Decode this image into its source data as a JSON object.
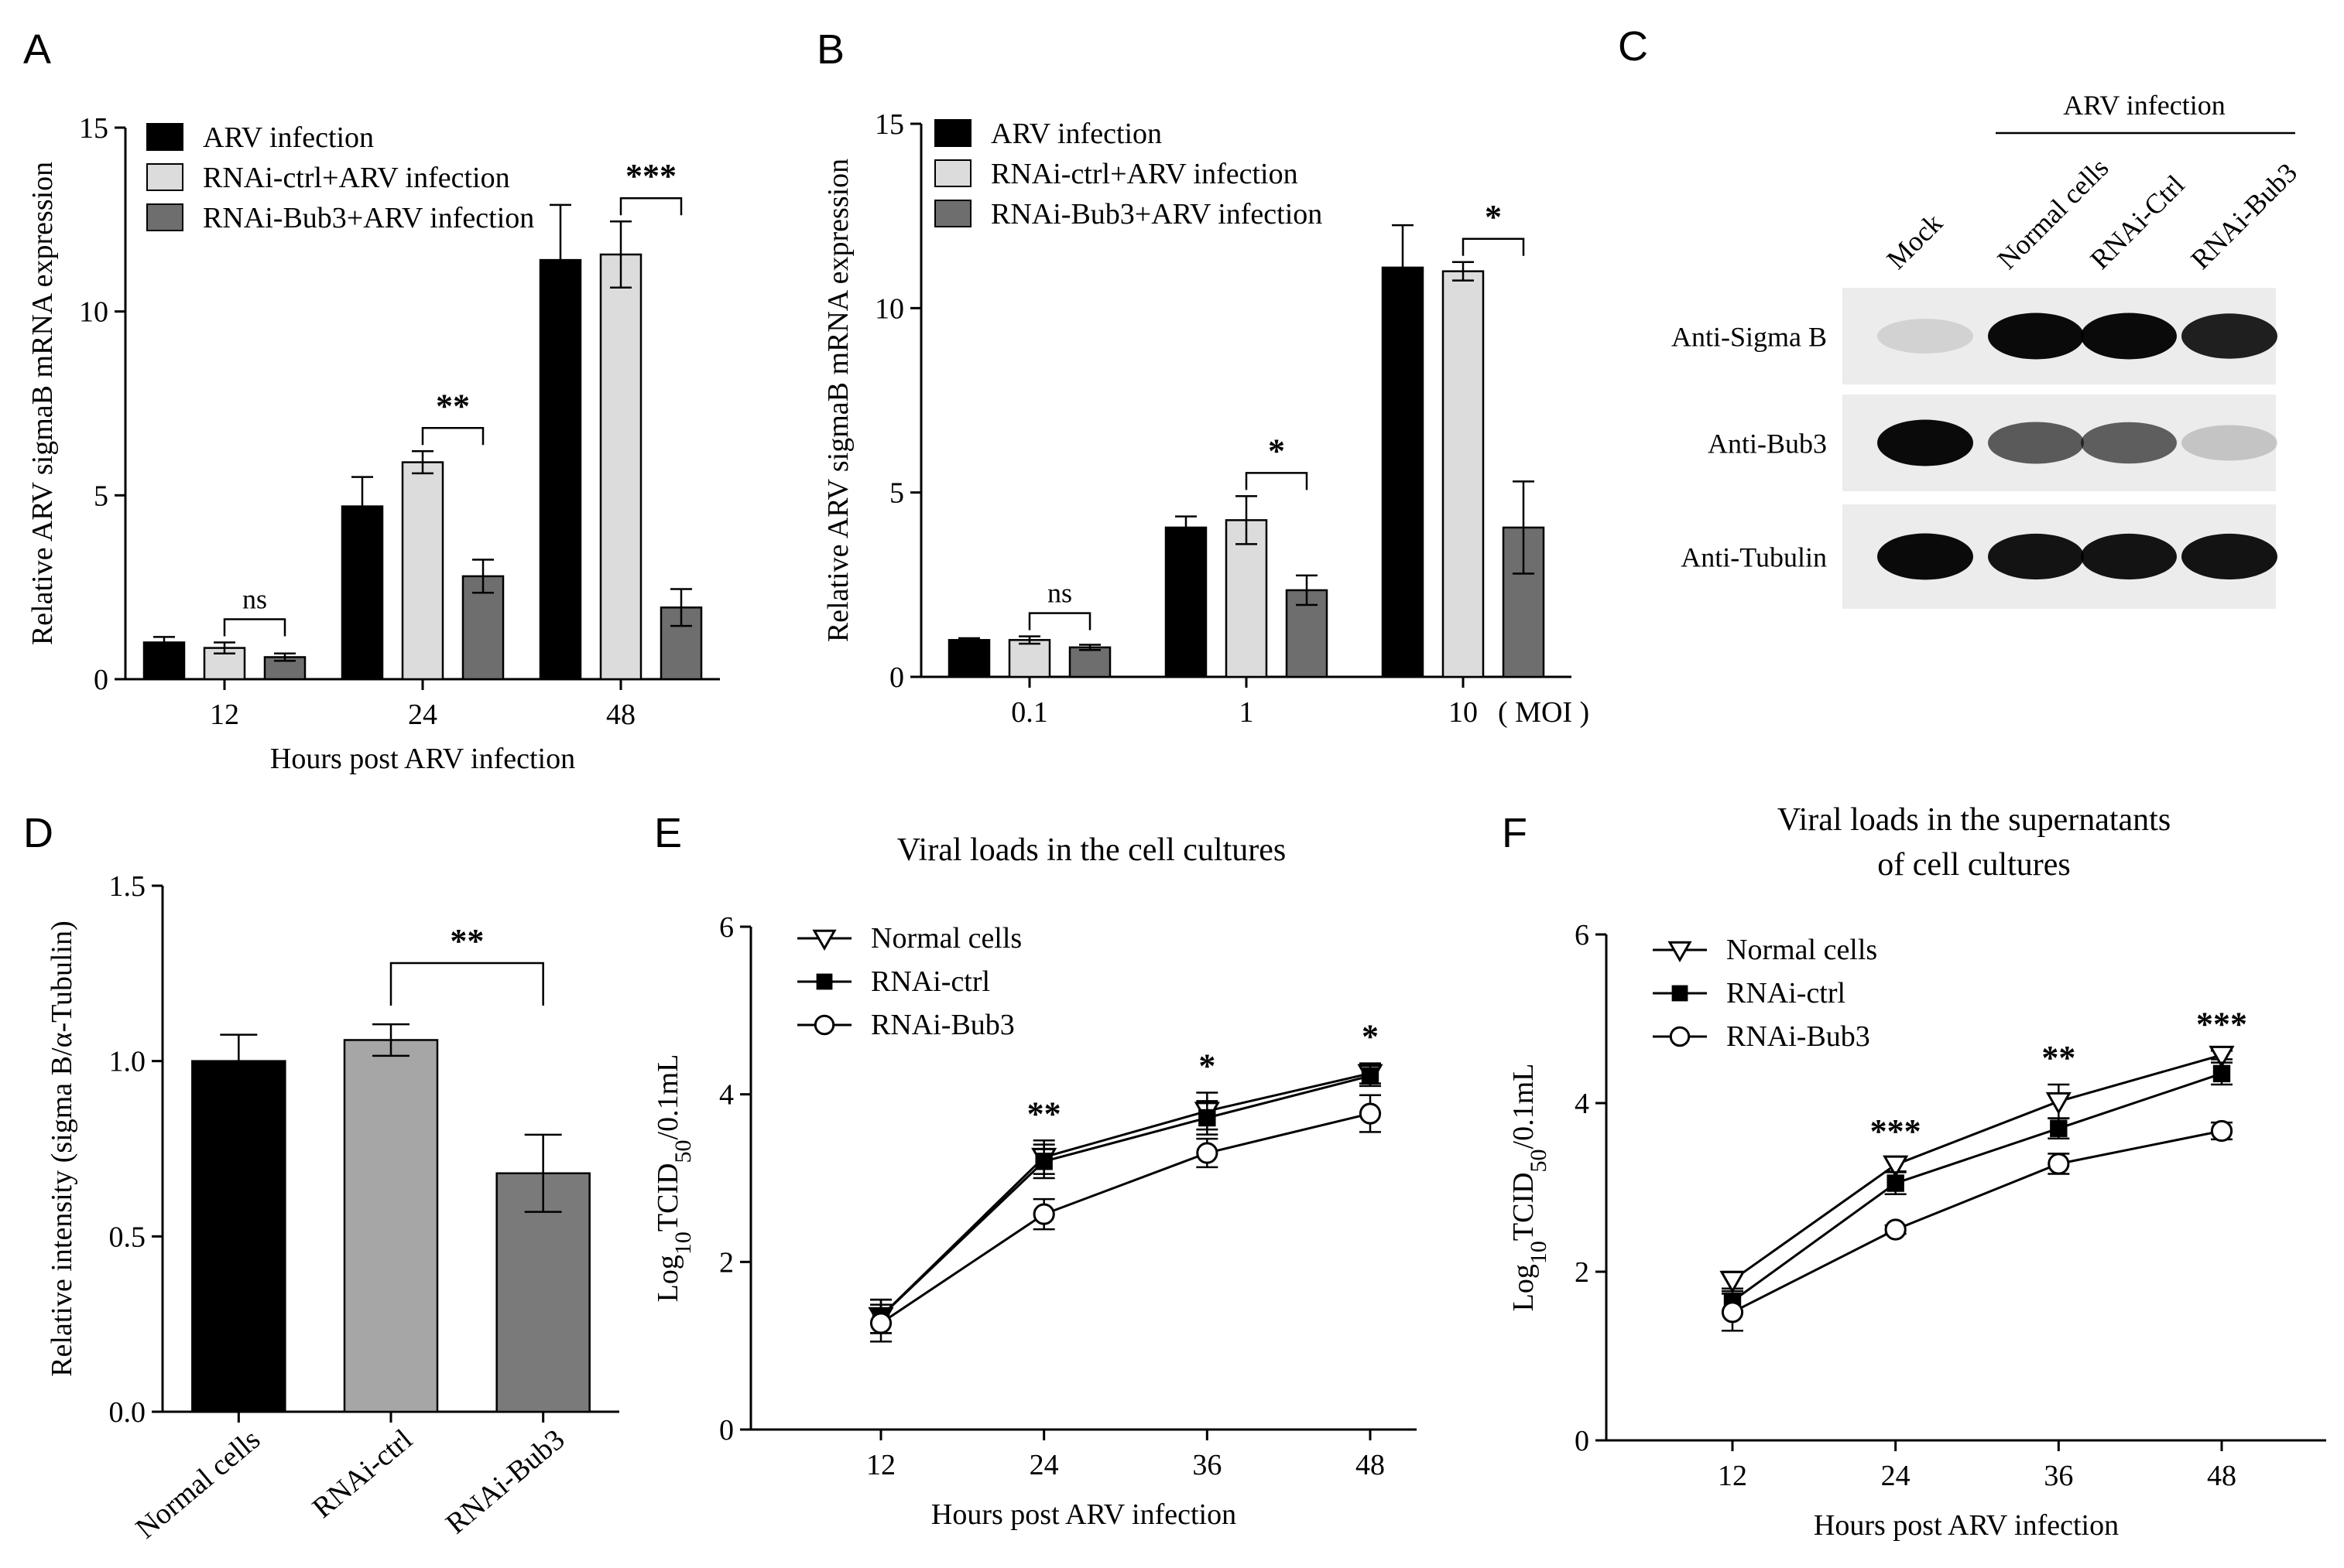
{
  "chart_data": [
    {
      "panel": "A",
      "type": "bar",
      "ylabel": "Relative ARV sigmaB mRNA expression",
      "xlabel": "Hours post ARV infection",
      "ylim": [
        0,
        15
      ],
      "yticks": [
        "0",
        "5",
        "10",
        "15"
      ],
      "categories": [
        "12",
        "24",
        "48"
      ],
      "series": [
        {
          "name": "ARV infection",
          "color": "#000000",
          "values": [
            1.0,
            4.7,
            11.4
          ],
          "errors": [
            0.15,
            0.8,
            1.5
          ]
        },
        {
          "name": "RNAi-ctrl+ARV infection",
          "color": "#dcdcdc",
          "values": [
            0.85,
            5.9,
            11.55
          ],
          "errors": [
            0.15,
            0.3,
            0.9
          ]
        },
        {
          "name": "RNAi-Bub3+ARV infection",
          "color": "#6e6e6e",
          "values": [
            0.6,
            2.8,
            1.95
          ],
          "errors": [
            0.1,
            0.45,
            0.5
          ]
        }
      ],
      "significance": [
        "ns",
        "**",
        "***"
      ]
    },
    {
      "panel": "B",
      "type": "bar",
      "ylabel": "Relative ARV sigmaB mRNA expression",
      "xunit": "( MOI )",
      "ylim": [
        0,
        15
      ],
      "yticks": [
        "0",
        "5",
        "10",
        "15"
      ],
      "categories": [
        "0.1",
        "1",
        "10"
      ],
      "series": [
        {
          "name": "ARV infection",
          "color": "#000000",
          "values": [
            1.0,
            4.05,
            11.1
          ],
          "errors": [
            0.05,
            0.3,
            1.15
          ]
        },
        {
          "name": "RNAi-ctrl+ARV infection",
          "color": "#dcdcdc",
          "values": [
            1.0,
            4.25,
            11.0
          ],
          "errors": [
            0.1,
            0.65,
            0.25
          ]
        },
        {
          "name": "RNAi-Bub3+ARV infection",
          "color": "#6e6e6e",
          "values": [
            0.8,
            2.35,
            4.05
          ],
          "errors": [
            0.07,
            0.4,
            1.25
          ]
        }
      ],
      "significance": [
        "ns",
        "*",
        "*"
      ]
    },
    {
      "panel": "D",
      "type": "bar",
      "ylabel": "Relative intensity (sigma B/α-Tubulin)",
      "ylim": [
        0,
        1.5
      ],
      "yticks": [
        "0.0",
        "0.5",
        "1.0",
        "1.5"
      ],
      "categories": [
        "Normal cells",
        "RNAi-ctrl",
        "RNAi-Bub3"
      ],
      "values": [
        1.0,
        1.06,
        0.68
      ],
      "errors": [
        0.075,
        0.045,
        0.11
      ],
      "colors": [
        "#000000",
        "#a6a6a6",
        "#7a7a7a"
      ],
      "significance": "**"
    },
    {
      "panel": "E",
      "type": "line",
      "title": "Viral loads in the cell cultures",
      "ylabel": "Log10TCID50/0.1mL",
      "xlabel": "Hours post ARV infection",
      "x": [
        12,
        24,
        36,
        48
      ],
      "xticks": [
        "12",
        "24",
        "36",
        "48"
      ],
      "ylim": [
        0,
        6
      ],
      "yticks": [
        "0",
        "2",
        "4",
        "6"
      ],
      "series": [
        {
          "name": "Normal cells",
          "marker": "triangle-down-open",
          "values": [
            1.35,
            3.25,
            3.8,
            4.25
          ],
          "errors": [
            0.2,
            0.2,
            0.22,
            0.12
          ]
        },
        {
          "name": "RNAi-ctrl",
          "marker": "square-filled",
          "values": [
            1.35,
            3.2,
            3.72,
            4.22
          ],
          "errors": [
            0.2,
            0.2,
            0.2,
            0.12
          ]
        },
        {
          "name": "RNAi-Bub3",
          "marker": "circle-open",
          "values": [
            1.27,
            2.57,
            3.3,
            3.77
          ],
          "errors": [
            0.22,
            0.18,
            0.17,
            0.22
          ]
        }
      ],
      "significance": [
        "",
        "**",
        "*",
        "*"
      ]
    },
    {
      "panel": "F",
      "type": "line",
      "title": [
        "Viral loads in the supernatants",
        "of cell cultures"
      ],
      "ylabel": "Log10TCID50/0.1mL",
      "xlabel": "Hours post ARV infection",
      "x": [
        12,
        24,
        36,
        48
      ],
      "xticks": [
        "12",
        "24",
        "36",
        "48"
      ],
      "ylim": [
        0,
        6
      ],
      "yticks": [
        "0",
        "2",
        "4",
        "6"
      ],
      "series": [
        {
          "name": "Normal cells",
          "marker": "triangle-down-open",
          "values": [
            1.9,
            3.27,
            4.02,
            4.57
          ],
          "errors": [
            0.1,
            0.08,
            0.2,
            0.05
          ]
        },
        {
          "name": "RNAi-ctrl",
          "marker": "square-filled",
          "values": [
            1.65,
            3.05,
            3.7,
            4.35
          ],
          "errors": [
            0.12,
            0.13,
            0.12,
            0.13
          ]
        },
        {
          "name": "RNAi-Bub3",
          "marker": "circle-open",
          "values": [
            1.52,
            2.5,
            3.28,
            3.67
          ],
          "errors": [
            0.22,
            0.05,
            0.12,
            0.1
          ]
        }
      ],
      "significance": [
        "",
        "***",
        "**",
        "***"
      ]
    }
  ],
  "panel_labels": [
    "A",
    "B",
    "C",
    "D",
    "E",
    "F"
  ],
  "western_blot": {
    "panel": "C",
    "header": "ARV infection",
    "lanes": [
      "Mock",
      "Normal cells",
      "RNAi-Ctrl",
      "RNAi-Bub3"
    ],
    "blots": [
      {
        "label": "Anti-Sigma B",
        "intensities": [
          0.05,
          1.0,
          1.0,
          0.9
        ]
      },
      {
        "label": "Anti-Bub3",
        "intensities": [
          1.0,
          0.62,
          0.6,
          0.12
        ]
      },
      {
        "label": "Anti-Tubulin",
        "intensities": [
          1.0,
          0.95,
          0.95,
          0.95
        ]
      }
    ]
  }
}
